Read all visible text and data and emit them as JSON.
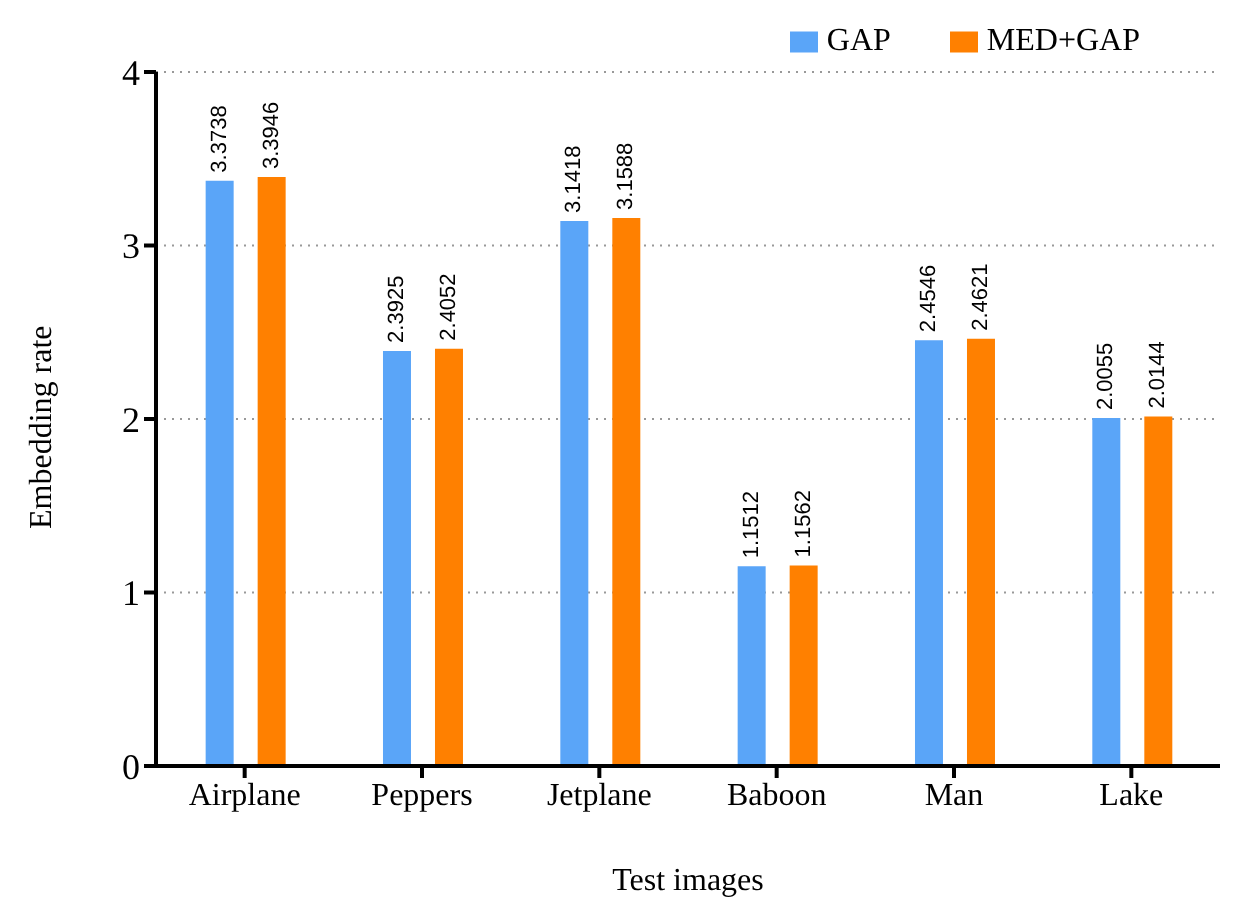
{
  "chart_data": {
    "type": "bar",
    "xlabel": "Test images",
    "ylabel": "Embedding rate",
    "categories": [
      "Airplane",
      "Peppers",
      "Jetplane",
      "Baboon",
      "Man",
      "Lake"
    ],
    "series": [
      {
        "name": "GAP",
        "color": "#5aa5f8",
        "values": [
          3.3738,
          2.3925,
          3.1418,
          1.1512,
          2.4546,
          2.0055
        ]
      },
      {
        "name": "MED+GAP",
        "color": "#ff8000",
        "values": [
          3.3946,
          2.4052,
          3.1588,
          1.1562,
          2.4621,
          2.0144
        ]
      }
    ],
    "ylim": [
      0,
      4
    ],
    "yticks": [
      0,
      1,
      2,
      3,
      4
    ],
    "grid": "y",
    "legend": "top right",
    "data_labels": true
  }
}
